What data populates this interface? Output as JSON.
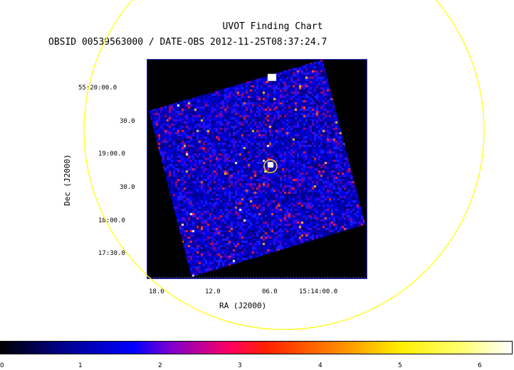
{
  "header": {
    "title": "UVOT Finding Chart",
    "subtitle": "OBSID 00539563000 / DATE-OBS 2012-11-25T08:37:24.7"
  },
  "axes": {
    "y_label": "Dec (J2000)",
    "x_label": "RA (J2000)",
    "y_ticks": [
      "55:20:00.0",
      "30.0",
      "19:00.0",
      "30.0",
      "18:00.0",
      "17:30.0"
    ],
    "x_ticks": [
      "18.0",
      "12.0",
      "06.0",
      "15:14:00.0"
    ]
  },
  "colorbar": {
    "ticks": [
      "0",
      "1",
      "2",
      "3",
      "4",
      "5",
      "6"
    ],
    "colors": [
      "#000000",
      "#00008a",
      "#0000ff",
      "#7a00d0",
      "#ff0060",
      "#ff2000",
      "#ff8800",
      "#ffee00",
      "#ffffff"
    ]
  },
  "overlay": {
    "circle_color": "#ffff00",
    "marker_color": "#ffcc44"
  }
}
